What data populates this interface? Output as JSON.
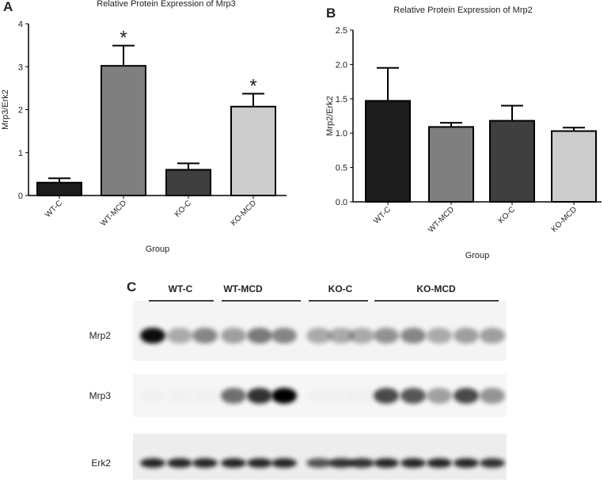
{
  "charts_panels": [
    "A",
    "B",
    "C"
  ],
  "chart_data": [
    {
      "type": "bar",
      "title": "Relative Protein Expression of Mrp3",
      "y_label": "Mrp3/Erk2",
      "x_label": "Group",
      "categories": [
        "WT-C",
        "WT-MCD",
        "KO-C",
        "KO-MCD"
      ],
      "values": [
        0.3,
        3.02,
        0.6,
        2.07
      ],
      "errors": [
        0.1,
        0.47,
        0.15,
        0.3
      ],
      "colors": [
        "#1c1c1c",
        "#7f7f7f",
        "#3f3f3f",
        "#cccccc"
      ],
      "significance": [
        null,
        "*",
        null,
        "*"
      ],
      "ylim": [
        0,
        4
      ],
      "yticks": [
        0,
        1,
        2,
        3,
        4
      ]
    },
    {
      "type": "bar",
      "title": "Relative Protein Expression of Mrp2",
      "y_label": "Mrp2/Erk2",
      "x_label": "Group",
      "categories": [
        "WT-C",
        "WT-MCD",
        "KO-C",
        "KO-MCD"
      ],
      "values": [
        1.47,
        1.09,
        1.18,
        1.03
      ],
      "errors": [
        0.48,
        0.06,
        0.22,
        0.05
      ],
      "colors": [
        "#1c1c1c",
        "#7f7f7f",
        "#3f3f3f",
        "#cccccc"
      ],
      "ylim": [
        0,
        2.5
      ],
      "yticks": [
        {
          "value": 0,
          "label": "0.0"
        },
        0.5,
        {
          "value": 1,
          "label": "1.0"
        },
        1.5,
        {
          "value": 2,
          "label": "2.0"
        },
        2.5
      ]
    }
  ],
  "blot": {
    "groups": [
      "WT-C",
      "WT-MCD",
      "KO-C",
      "KO-MCD"
    ],
    "rows": [
      "Mrp2",
      "Mrp3",
      "Erk2"
    ]
  }
}
